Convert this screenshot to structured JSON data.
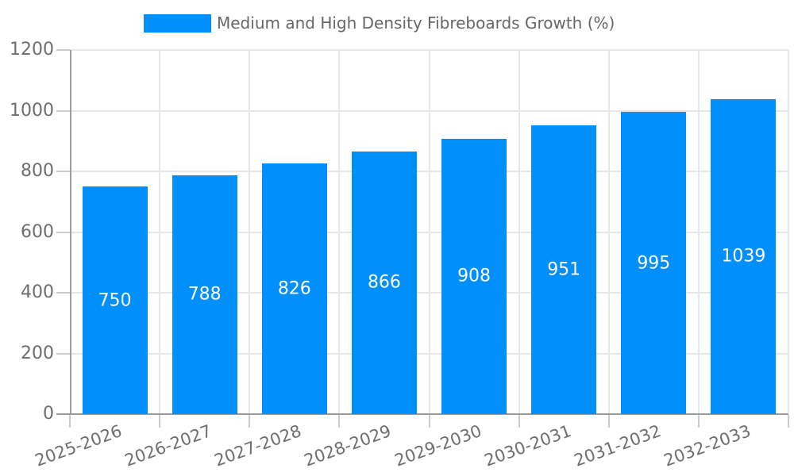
{
  "legend": {
    "items": [
      {
        "label": "Medium and High Density Fibreboards Growth (%)",
        "color": "#008FFB"
      }
    ]
  },
  "chart_data": {
    "type": "bar",
    "title": "Medium and High Density Fibreboards Growth (%)",
    "categories": [
      "2025-2026",
      "2026-2027",
      "2027-2028",
      "2028-2029",
      "2029-2030",
      "2030-2031",
      "2031-2032",
      "2032-2033"
    ],
    "values": [
      750,
      788,
      826,
      866,
      908,
      951,
      995,
      1039
    ],
    "xlabel": "",
    "ylabel": "",
    "ylim": [
      0,
      1200
    ],
    "yticks": [
      0,
      200,
      400,
      600,
      800,
      1000,
      1200
    ],
    "grid": true,
    "legend_position": "top",
    "value_label_position": "center",
    "colors": {
      "bar": "#008FFB",
      "bar_label": "#FFFFFF",
      "axis_text": "#6E6E6E",
      "legend_text": "#666666",
      "gridline": "#E7E7E7",
      "axis_line": "#9C9C9C",
      "tick": "#CCCCCC"
    }
  }
}
